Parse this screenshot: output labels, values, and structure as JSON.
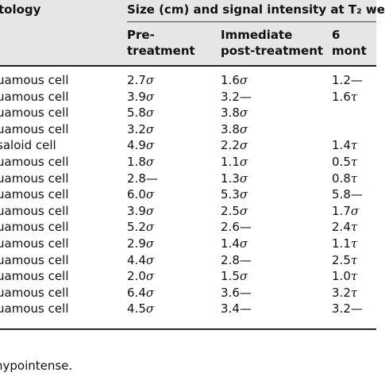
{
  "header": {
    "col0": "tology",
    "group": "Size (cm) and signal intensity at T₂ we",
    "sub": [
      "Pre-\ntreatment",
      "Immediate\npost-treatment",
      "6 mont"
    ]
  },
  "table": {
    "rows": [
      [
        "uamous cell",
        "2.7σ",
        "1.6σ",
        "1.2—"
      ],
      [
        "uamous cell",
        "3.9σ",
        "3.2—",
        "1.6τ"
      ],
      [
        "uamous cell",
        "5.8σ",
        "3.8σ"
      ],
      [
        "uamous cell",
        "3.2σ",
        "3.8σ"
      ],
      [
        "saloid cell",
        "4.9σ",
        "2.2σ",
        "1.4τ"
      ],
      [
        "uamous cell",
        "1.8σ",
        "1.1σ",
        "0.5τ"
      ],
      [
        "uamous cell",
        "2.8—",
        "1.3σ",
        "0.8τ"
      ],
      [
        "uamous cell",
        "6.0σ",
        "5.3σ",
        "5.8—"
      ],
      [
        "uamous cell",
        "3.9σ",
        "2.5σ",
        "1.7σ"
      ],
      [
        "uamous cell",
        "5.2σ",
        "2.6—",
        "2.4τ"
      ],
      [
        "uamous cell",
        "2.9σ",
        "1.4σ",
        "1.1τ"
      ],
      [
        "uamous cell",
        "4.4σ",
        "2.8—",
        "2.5τ"
      ],
      [
        "uamous cell",
        "2.0σ",
        "1.5σ",
        "1.0τ"
      ],
      [
        "uamous cell",
        "6.4σ",
        "3.6—",
        "3.2τ"
      ],
      [
        "uamous cell",
        "4.5σ",
        "3.4—",
        "3.2—"
      ]
    ]
  },
  "footnote": "hypointense."
}
